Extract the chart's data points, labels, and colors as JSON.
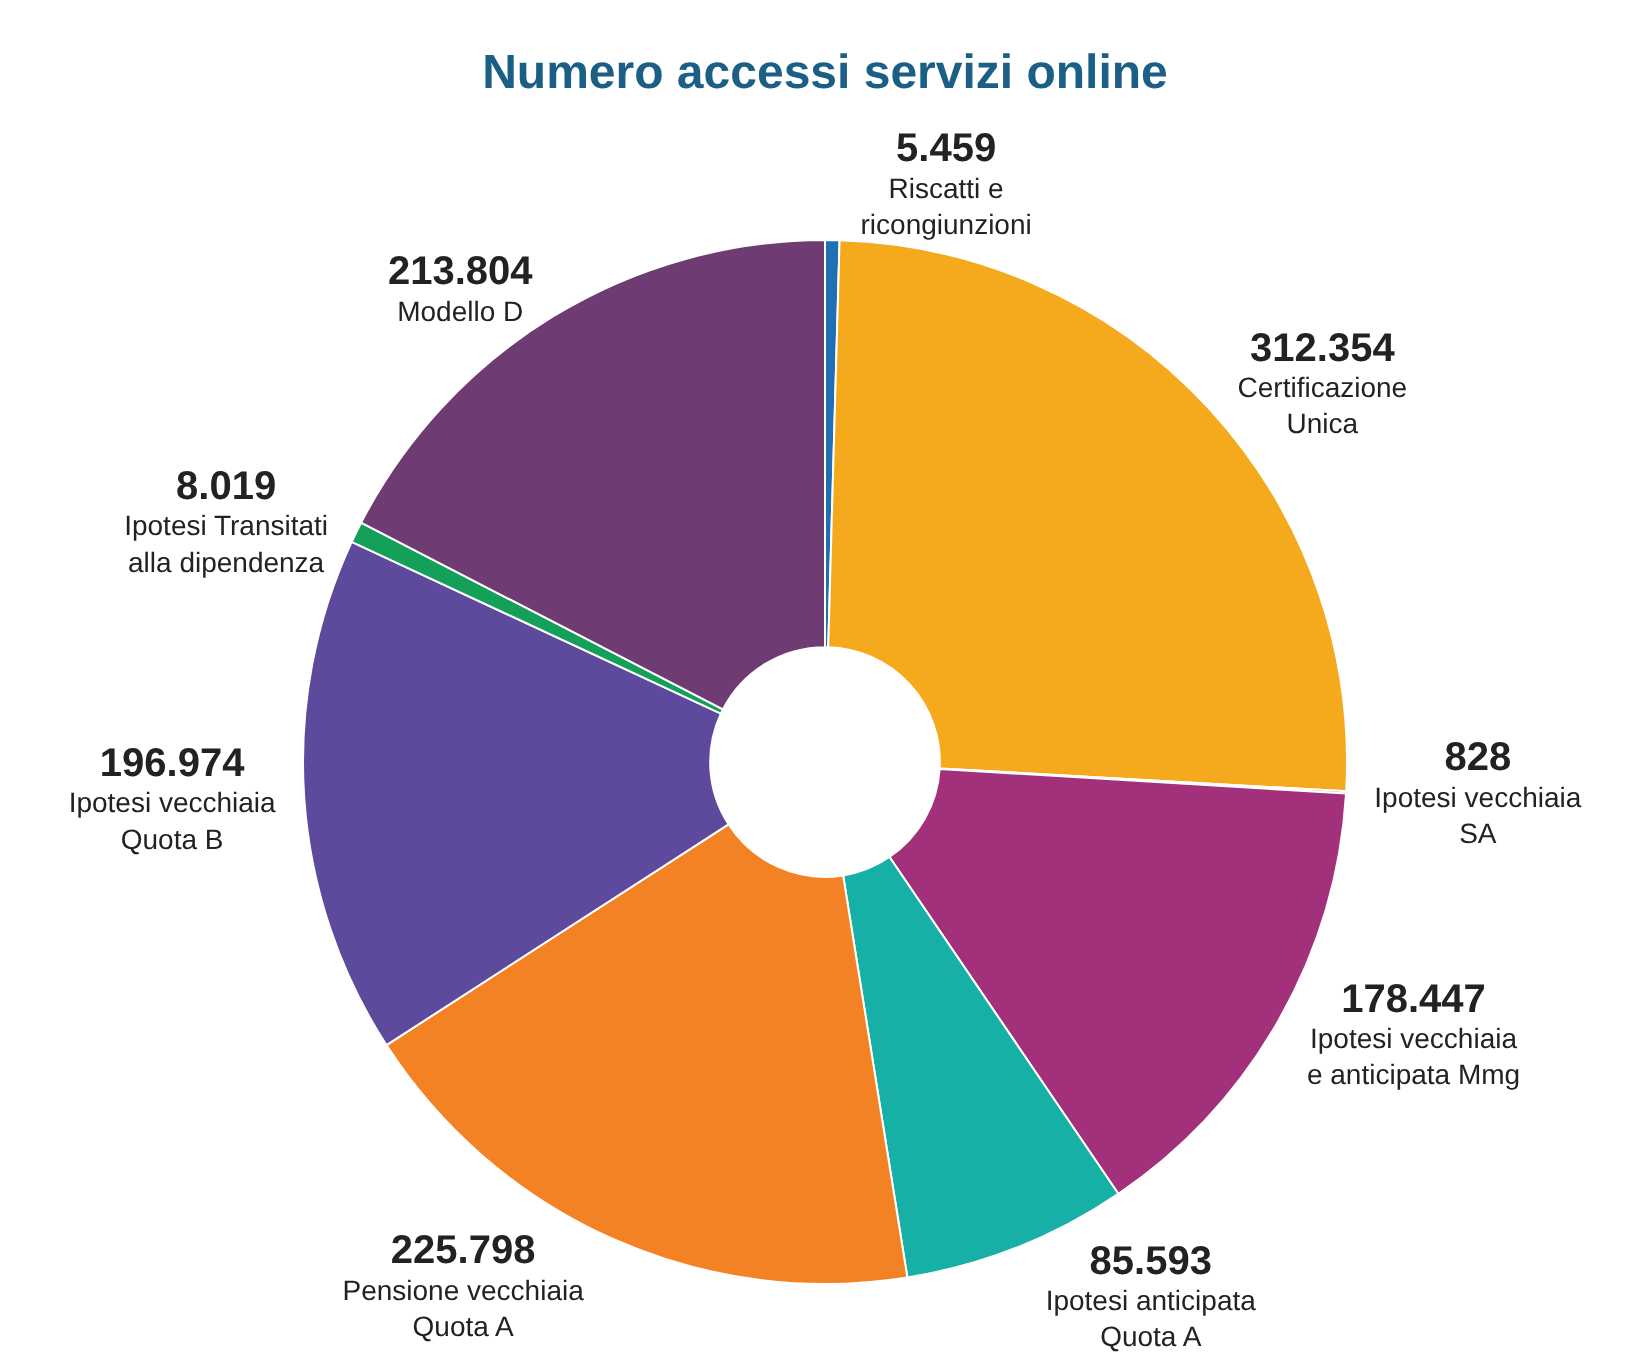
{
  "chart_data": {
    "type": "donut",
    "title": "Numero accessi servizi online",
    "categories": [
      "Riscatti e ricongiunzioni",
      "Certificazione Unica",
      "Ipotesi vecchiaia SA",
      "Ipotesi vecchiaia e anticipata Mmg",
      "Ipotesi anticipata Quota A",
      "Pensione vecchiaia Quota A",
      "Ipotesi vecchiaia Quota B",
      "Ipotesi Transitati alla dipendenza",
      "Modello D"
    ],
    "values": [
      5459,
      312354,
      828,
      178447,
      85593,
      225798,
      196974,
      8019,
      213804
    ],
    "value_labels": [
      "5.459",
      "312.354",
      "828",
      "178.447",
      "85.593",
      "225.798",
      "196.974",
      "8.019",
      "213.804"
    ],
    "colors": [
      "#1f6fb2",
      "#f5a91c",
      "#c2185b",
      "#a2307b",
      "#17b0a7",
      "#f28224",
      "#5d4a9c",
      "#15a05a",
      "#6e3b73"
    ]
  }
}
